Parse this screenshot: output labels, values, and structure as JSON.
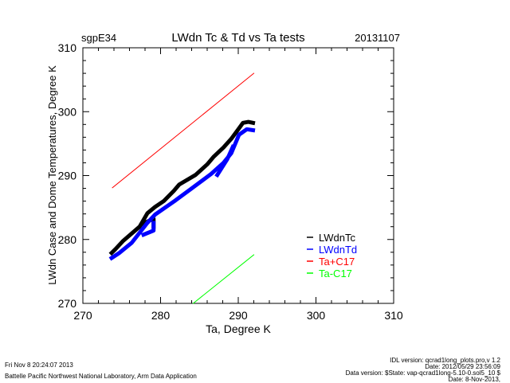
{
  "header": {
    "site": "sgpE34",
    "title": "LWdn Tc & Td vs Ta tests",
    "date": "20131107"
  },
  "footer": {
    "left": [
      "Fri Nov  8 20:24:07 2013",
      "Battelle Pacific Northwest National Laboratory, Arm Data Application"
    ],
    "right": [
      "IDL version: qcrad1long_plots.pro,v 1.2",
      "Date: 2012/05/29 23:56:09",
      "Data version: $State: vap-qcrad1long-5.10-0.sol5_10 $",
      "Date: 8-Nov-2013,"
    ]
  },
  "chart_data": {
    "type": "scatter",
    "title": "LWdn Tc & Td vs Ta tests",
    "xlabel": "Ta, Degree K",
    "ylabel": "LWdn Case and Dome Temperatures, Degree K",
    "xlim": [
      270,
      310
    ],
    "ylim": [
      270,
      310
    ],
    "xticks": [
      "270",
      "280",
      "290",
      "300",
      "310"
    ],
    "yticks": [
      "270",
      "280",
      "290",
      "300",
      "310"
    ],
    "grid": false,
    "legend_position": "bottom-right",
    "series": [
      {
        "name": "LWdnTc",
        "color": "#000000",
        "segments": [
          [
            [
              273.7,
              277.9
            ],
            [
              274.2,
              278.5
            ],
            [
              275.2,
              279.8
            ],
            [
              277.3,
              282.0
            ],
            [
              278.3,
              284.1
            ],
            [
              279.3,
              285.1
            ],
            [
              280.4,
              286.0
            ],
            [
              281.7,
              287.6
            ],
            [
              282.4,
              288.6
            ],
            [
              284.5,
              290.1
            ],
            [
              286.0,
              291.75
            ],
            [
              286.8,
              292.9
            ],
            [
              288.1,
              294.4
            ],
            [
              289.1,
              295.75
            ],
            [
              290.1,
              297.4
            ],
            [
              290.6,
              298.25
            ],
            [
              291.3,
              298.4
            ],
            [
              291.9,
              298.25
            ]
          ],
          [
            [
              277.6,
              282.4
            ],
            [
              279.1,
              283.25
            ],
            [
              279.1,
              282.0
            ]
          ]
        ]
      },
      {
        "name": "LWdnTd",
        "color": "#0000ff",
        "segments": [
          [
            [
              273.7,
              277.1
            ],
            [
              274.7,
              277.9
            ],
            [
              276.3,
              279.5
            ],
            [
              278.3,
              282.6
            ],
            [
              279.3,
              283.9
            ],
            [
              281.9,
              286.1
            ],
            [
              283.9,
              287.9
            ],
            [
              286.5,
              290.25
            ],
            [
              288.1,
              292.0
            ],
            [
              289.1,
              293.5
            ],
            [
              290.1,
              296.4
            ],
            [
              291.1,
              297.25
            ],
            [
              291.9,
              297.1
            ]
          ],
          [
            [
              287.3,
              290.1
            ],
            [
              288.6,
              292.6
            ],
            [
              289.3,
              294.5
            ]
          ],
          [
            [
              277.8,
              280.75
            ],
            [
              279.1,
              281.4
            ],
            [
              279.1,
              282.6
            ]
          ]
        ]
      },
      {
        "name": "Ta+C17",
        "color": "#ff0000",
        "segments": [
          [
            [
              273.8,
              288.1
            ],
            [
              292.0,
              306.0
            ]
          ]
        ]
      },
      {
        "name": "Ta-C17",
        "color": "#00ff00",
        "segments": [
          [
            [
              284.2,
              270.0
            ],
            [
              292.0,
              277.6
            ]
          ]
        ]
      }
    ]
  }
}
